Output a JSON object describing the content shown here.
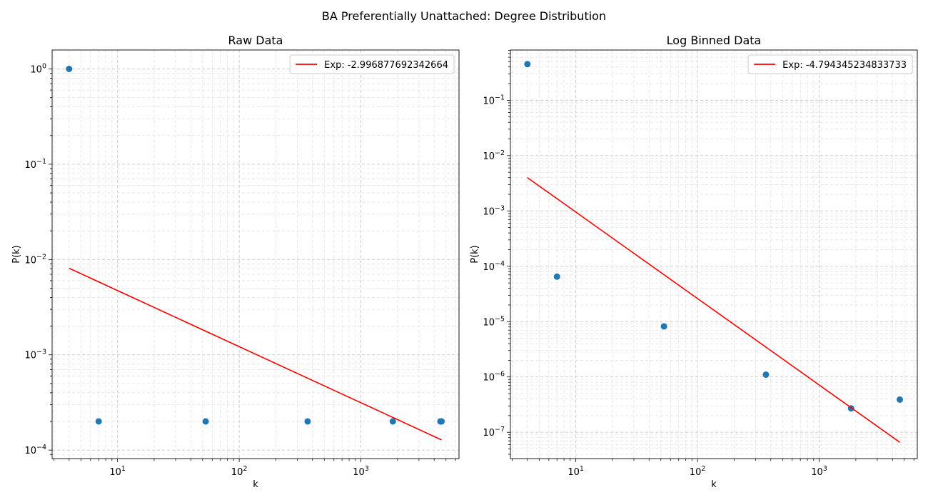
{
  "figure": {
    "suptitle": "BA Preferentially Unattached: Degree Distribution"
  },
  "chart_data": [
    {
      "type": "scatter",
      "title": "Raw Data",
      "xlabel": "k",
      "ylabel": "P(k)",
      "xscale": "log",
      "yscale": "log",
      "xlim": [
        2.9,
        6400
      ],
      "ylim": [
        8.15e-05,
        1.58
      ],
      "x_ticks": [
        {
          "value": 10,
          "label": "10^1"
        },
        {
          "value": 100,
          "label": "10^2"
        },
        {
          "value": 1000,
          "label": "10^3"
        }
      ],
      "y_ticks": [
        {
          "value": 0.0001,
          "label": "10^-4"
        },
        {
          "value": 0.001,
          "label": "10^-3"
        },
        {
          "value": 0.01,
          "label": "10^-2"
        },
        {
          "value": 0.1,
          "label": "10^-1"
        },
        {
          "value": 1,
          "label": "10^0"
        }
      ],
      "grid": true,
      "legend_position": "top-right",
      "series": [
        {
          "kind": "scatter",
          "color": "#1f77b4",
          "points": [
            {
              "x": 4,
              "y": 1.0
            },
            {
              "x": 7,
              "y": 0.0002
            },
            {
              "x": 53,
              "y": 0.0002
            },
            {
              "x": 365,
              "y": 0.0002
            },
            {
              "x": 1830,
              "y": 0.0002
            },
            {
              "x": 4500,
              "y": 0.0002
            },
            {
              "x": 4600,
              "y": 0.0002
            }
          ]
        },
        {
          "kind": "line",
          "name": "Exp: -2.996877692342664",
          "color": "#ff0000",
          "points": [
            {
              "x": 4,
              "y": 0.0081
            },
            {
              "x": 4600,
              "y": 0.000128
            }
          ]
        }
      ]
    },
    {
      "type": "scatter",
      "title": "Log Binned Data",
      "xlabel": "k",
      "ylabel": "P(k)",
      "xscale": "log",
      "yscale": "log",
      "xlim": [
        2.9,
        6400
      ],
      "ylim": [
        3.35e-08,
        0.81
      ],
      "x_ticks": [
        {
          "value": 10,
          "label": "10^1"
        },
        {
          "value": 100,
          "label": "10^2"
        },
        {
          "value": 1000,
          "label": "10^3"
        }
      ],
      "y_ticks": [
        {
          "value": 1e-07,
          "label": "10^-7"
        },
        {
          "value": 1e-06,
          "label": "10^-6"
        },
        {
          "value": 1e-05,
          "label": "10^-5"
        },
        {
          "value": 0.0001,
          "label": "10^-4"
        },
        {
          "value": 0.001,
          "label": "10^-3"
        },
        {
          "value": 0.01,
          "label": "10^-2"
        },
        {
          "value": 0.1,
          "label": "10^-1"
        }
      ],
      "grid": true,
      "legend_position": "top-right",
      "series": [
        {
          "kind": "scatter",
          "color": "#1f77b4",
          "points": [
            {
              "x": 4,
              "y": 0.45
            },
            {
              "x": 7,
              "y": 6.5e-05
            },
            {
              "x": 53,
              "y": 8.2e-06
            },
            {
              "x": 365,
              "y": 1.1e-06
            },
            {
              "x": 1830,
              "y": 2.7e-07
            },
            {
              "x": 4600,
              "y": 3.9e-07
            }
          ]
        },
        {
          "kind": "line",
          "name": "Exp: -4.794345234833733",
          "color": "#ff0000",
          "points": [
            {
              "x": 4,
              "y": 0.004
            },
            {
              "x": 4600,
              "y": 6.6e-08
            }
          ]
        }
      ]
    }
  ]
}
